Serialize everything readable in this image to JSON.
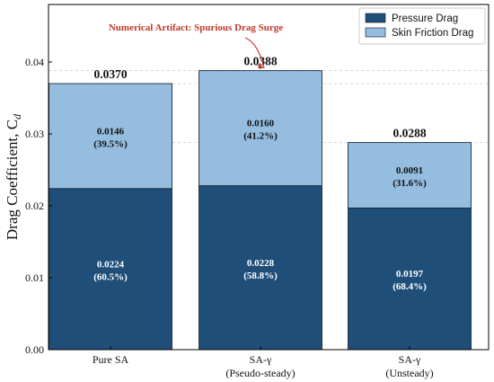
{
  "chart_data": {
    "type": "bar",
    "stacked": true,
    "title": "",
    "xlabel": "",
    "ylabel": "Drag Coefficient, C",
    "ylabel_subscript": "d",
    "ylim": [
      0,
      0.048
    ],
    "yticks": [
      "0.00",
      "0.01",
      "0.02",
      "0.03",
      "0.04"
    ],
    "ytick_values": [
      0,
      0.01,
      0.02,
      0.03,
      0.04
    ],
    "grid": false,
    "legend_position": "top-right",
    "categories": [
      {
        "line1": "Pure SA",
        "line2": ""
      },
      {
        "line1": "SA-γ",
        "line2": "(Pseudo-steady)"
      },
      {
        "line1": "SA-γ",
        "line2": "(Unsteady)"
      }
    ],
    "series": [
      {
        "name": "Pressure Drag",
        "color": "#1f4e79",
        "label_color": "#ffffff",
        "values": [
          0.0224,
          0.0228,
          0.0197
        ],
        "value_labels": [
          "0.0224",
          "0.0228",
          "0.0197"
        ],
        "percent_labels": [
          "(60.5%)",
          "(58.8%)",
          "(68.4%)"
        ]
      },
      {
        "name": "Skin Friction Drag",
        "color": "#94bde0",
        "label_color": "#111111",
        "values": [
          0.0146,
          0.016,
          0.0091
        ],
        "value_labels": [
          "0.0146",
          "0.0160",
          "0.0091"
        ],
        "percent_labels": [
          "(39.5%)",
          "(41.2%)",
          "(31.6%)"
        ]
      }
    ],
    "totals": [
      0.037,
      0.0388,
      0.0288
    ],
    "total_labels": [
      "0.0370",
      "0.0388",
      "0.0288"
    ],
    "reference_lines": [
      0.037,
      0.0388,
      0.0288
    ],
    "annotation": {
      "text": "Numerical Artifact: Spurious Drag Surge",
      "target_category": 1,
      "color": "#c0392b"
    }
  }
}
